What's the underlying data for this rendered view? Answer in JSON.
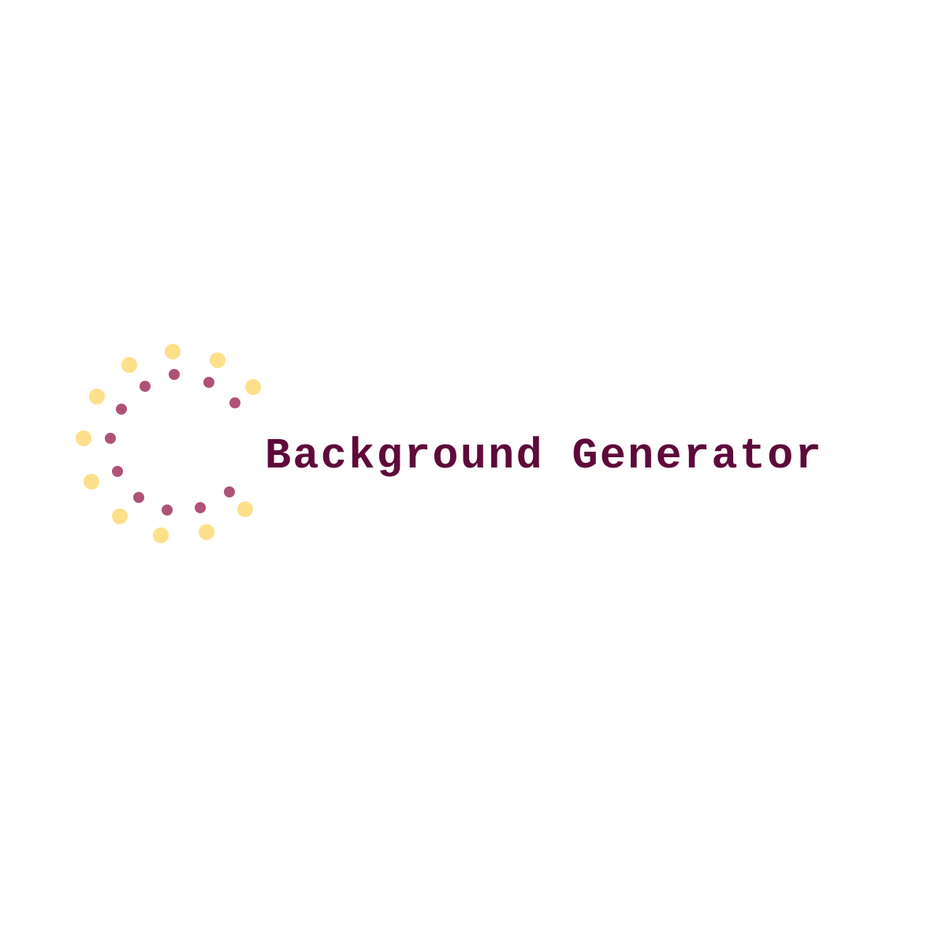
{
  "brand": {
    "name": "Background Generator"
  },
  "colors": {
    "background": "#ffffff",
    "text": "#5e0a3a",
    "outer_dots": "#fde08a",
    "inner_dots": "#b05178"
  },
  "logo": {
    "icon": "dotted-circle-logo-icon",
    "outer_dot_count": 12,
    "inner_dot_count": 12
  }
}
